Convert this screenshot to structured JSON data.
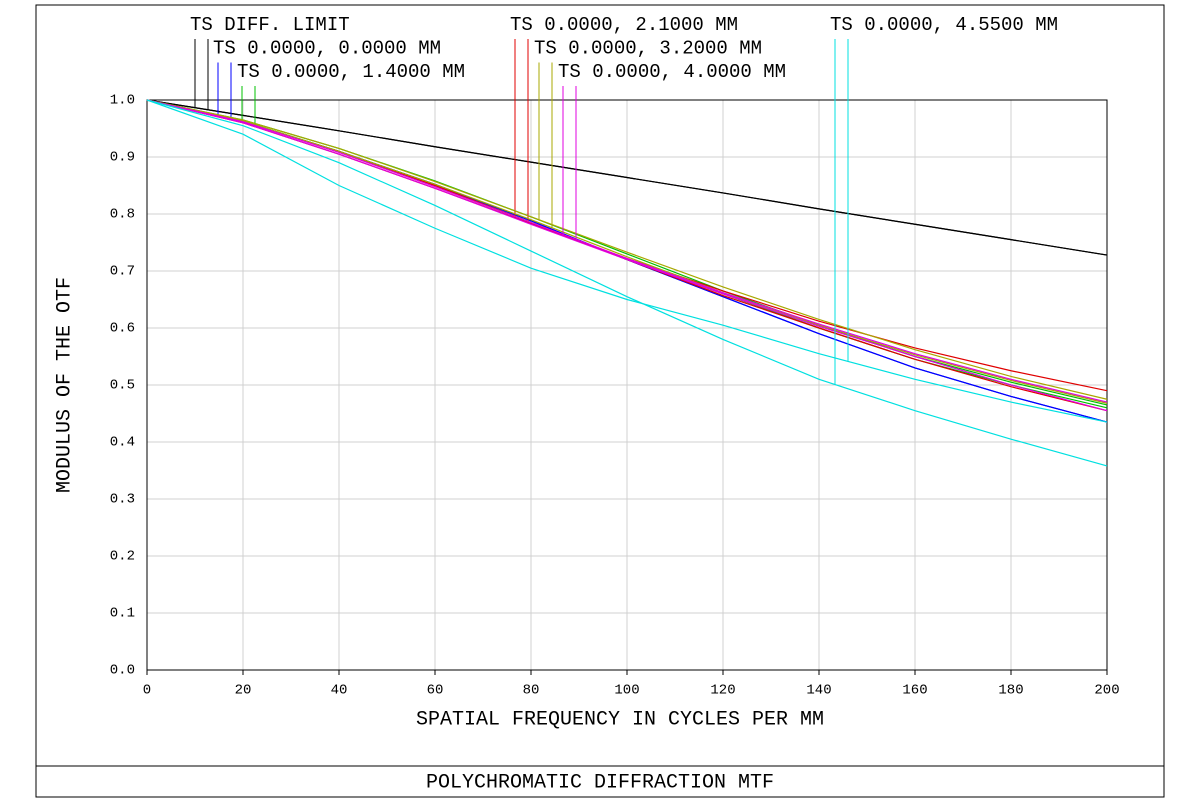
{
  "chart_data": {
    "type": "line",
    "title": "POLYCHROMATIC DIFFRACTION MTF",
    "xlabel": "SPATIAL FREQUENCY IN CYCLES PER MM",
    "ylabel": "MODULUS OF THE OTF",
    "x": [
      0,
      20,
      40,
      60,
      80,
      100,
      120,
      140,
      160,
      180,
      200
    ],
    "xlim": [
      0,
      200
    ],
    "xticks": [
      0,
      20,
      40,
      60,
      80,
      100,
      120,
      140,
      160,
      180,
      200
    ],
    "ylim": [
      0,
      1
    ],
    "yticks": [
      {
        "value": 0,
        "label": "0.0"
      },
      0.1,
      0.2,
      0.3,
      0.4,
      0.5,
      0.6,
      0.7,
      0.8,
      0.9,
      {
        "value": 1,
        "label": "1.0"
      }
    ],
    "grid": true,
    "series": [
      {
        "name": "TS DIFF. LIMIT",
        "color": "#000000",
        "tangential": [
          1,
          0.973,
          0.946,
          0.918,
          0.891,
          0.864,
          0.837,
          0.809,
          0.782,
          0.755,
          0.728
        ],
        "sagittal": [
          1,
          0.973,
          0.946,
          0.918,
          0.891,
          0.864,
          0.837,
          0.809,
          0.782,
          0.755,
          0.728
        ]
      },
      {
        "name": "TS 0.0000, 0.0000 MM",
        "color": "#0000ff",
        "tangential": [
          1,
          0.962,
          0.91,
          0.852,
          0.788,
          0.72,
          0.655,
          0.59,
          0.53,
          0.48,
          0.435
        ],
        "sagittal": [
          1,
          0.962,
          0.91,
          0.852,
          0.788,
          0.72,
          0.655,
          0.59,
          0.53,
          0.48,
          0.435
        ]
      },
      {
        "name": "TS 0.0000, 1.4000 MM",
        "color": "#00c000",
        "tangential": [
          1,
          0.965,
          0.915,
          0.858,
          0.795,
          0.73,
          0.665,
          0.605,
          0.55,
          0.505,
          0.465
        ],
        "sagittal": [
          1,
          0.963,
          0.91,
          0.85,
          0.785,
          0.72,
          0.66,
          0.6,
          0.545,
          0.5,
          0.46
        ]
      },
      {
        "name": "TS 0.0000, 2.1000 MM",
        "color": "#e00000",
        "tangential": [
          1,
          0.96,
          0.905,
          0.845,
          0.783,
          0.722,
          0.665,
          0.612,
          0.565,
          0.525,
          0.49
        ],
        "sagittal": [
          1,
          0.962,
          0.91,
          0.85,
          0.785,
          0.72,
          0.657,
          0.6,
          0.545,
          0.497,
          0.455
        ]
      },
      {
        "name": "TS 0.0000, 3.2000 MM",
        "color": "#a8a800",
        "tangential": [
          1,
          0.965,
          0.915,
          0.857,
          0.795,
          0.733,
          0.672,
          0.615,
          0.562,
          0.515,
          0.475
        ],
        "sagittal": [
          1,
          0.963,
          0.91,
          0.852,
          0.79,
          0.725,
          0.662,
          0.605,
          0.553,
          0.508,
          0.468
        ]
      },
      {
        "name": "TS 0.0000, 4.0000 MM",
        "color": "#e000e0",
        "tangential": [
          1,
          0.96,
          0.905,
          0.845,
          0.782,
          0.72,
          0.66,
          0.603,
          0.55,
          0.5,
          0.455
        ],
        "sagittal": [
          1,
          0.962,
          0.908,
          0.848,
          0.785,
          0.722,
          0.662,
          0.607,
          0.555,
          0.51,
          0.47
        ]
      },
      {
        "name": "TS 0.0000, 4.5500 MM",
        "color": "#00e0e0",
        "tangential": [
          1,
          0.955,
          0.89,
          0.815,
          0.735,
          0.655,
          0.58,
          0.51,
          0.455,
          0.405,
          0.358
        ],
        "sagittal": [
          1,
          0.94,
          0.85,
          0.775,
          0.705,
          0.65,
          0.605,
          0.555,
          0.51,
          0.47,
          0.435
        ]
      }
    ]
  }
}
